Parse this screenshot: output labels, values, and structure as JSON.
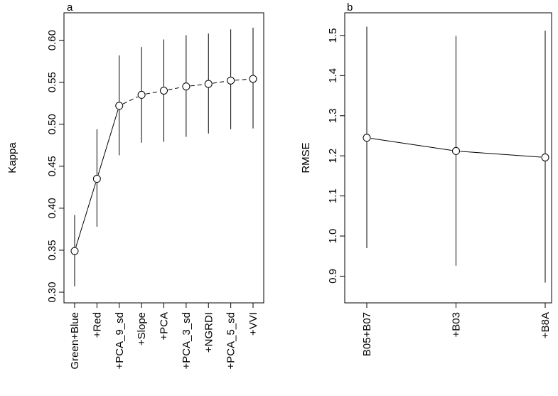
{
  "chart_data": [
    {
      "type": "line",
      "panel_label": "a",
      "ylabel": "Kappa",
      "xlabel": "",
      "ylim": [
        0.3,
        0.62
      ],
      "yticks": [
        "0.30",
        "0.35",
        "0.40",
        "0.45",
        "0.50",
        "0.55",
        "0.60"
      ],
      "categories": [
        "Green+Blue",
        "+Red",
        "+PCA_9_sd",
        "+Slope",
        "+PCA",
        "+PCA_3_sd",
        "+NGRDI",
        "+PCA_5_sd",
        "+VVI"
      ],
      "series": [
        {
          "values": [
            0.349,
            0.435,
            0.522,
            0.535,
            0.54,
            0.545,
            0.548,
            0.552,
            0.554
          ],
          "lower": [
            0.307,
            0.378,
            0.463,
            0.478,
            0.479,
            0.485,
            0.489,
            0.494,
            0.495
          ],
          "upper": [
            0.392,
            0.494,
            0.582,
            0.592,
            0.601,
            0.606,
            0.608,
            0.613,
            0.615
          ],
          "line_styles": [
            "solid",
            "solid",
            "dashed",
            "dashed",
            "dashed",
            "dashed",
            "dashed",
            "dashed"
          ]
        }
      ],
      "grid": false,
      "legend": "none"
    },
    {
      "type": "line",
      "panel_label": "b",
      "ylabel": "RMSE",
      "xlabel": "",
      "ylim": [
        0.86,
        1.53
      ],
      "yticks": [
        "0.9",
        "1.0",
        "1.1",
        "1.2",
        "1.3",
        "1.4",
        "1.5"
      ],
      "categories": [
        "B05+B07",
        "+B03",
        "+B8A"
      ],
      "series": [
        {
          "values": [
            1.245,
            1.212,
            1.196
          ],
          "lower": [
            0.97,
            0.926,
            0.884
          ],
          "upper": [
            1.522,
            1.499,
            1.512
          ],
          "line_styles": [
            "solid",
            "solid"
          ]
        }
      ],
      "grid": false,
      "legend": "none"
    }
  ]
}
